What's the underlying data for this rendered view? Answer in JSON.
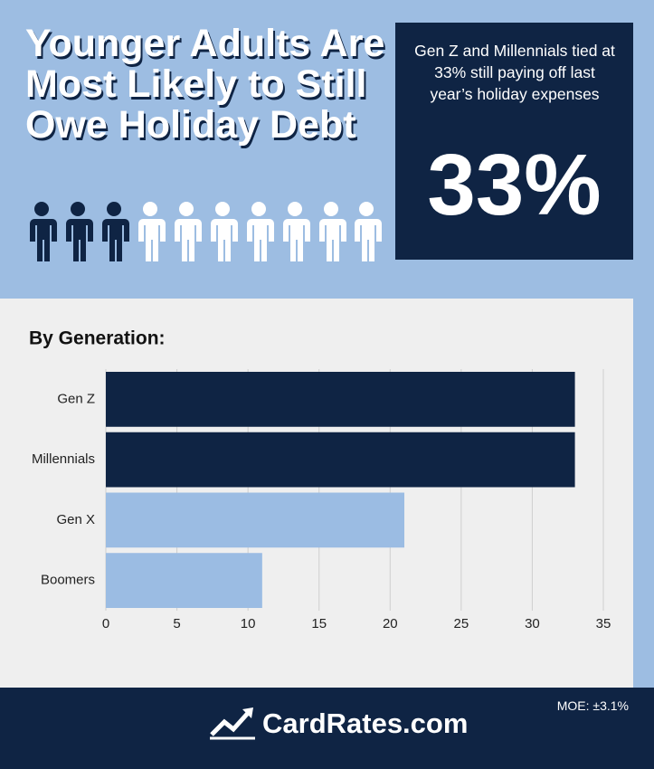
{
  "header": {
    "title": "Younger Adults Are Most Likely to Still Owe Holiday Debt",
    "callout": "Gen Z and Millennials tied at 33% still paying off last year’s holiday expenses",
    "stat": "33%"
  },
  "chart_data": {
    "type": "bar",
    "orientation": "horizontal",
    "title": "By Generation:",
    "categories": [
      "Gen Z",
      "Millennials",
      "Gen X",
      "Boomers"
    ],
    "values": [
      33,
      33,
      21,
      11
    ],
    "colors": [
      "#0f2444",
      "#0f2444",
      "#9bbce3",
      "#9bbce3"
    ],
    "xlim": [
      0,
      35
    ],
    "xticks": [
      0,
      5,
      10,
      15,
      20,
      25,
      30,
      35
    ],
    "grid": true
  },
  "footer": {
    "note": "MOE: ±3.1%",
    "brand": "CardRates.com"
  }
}
